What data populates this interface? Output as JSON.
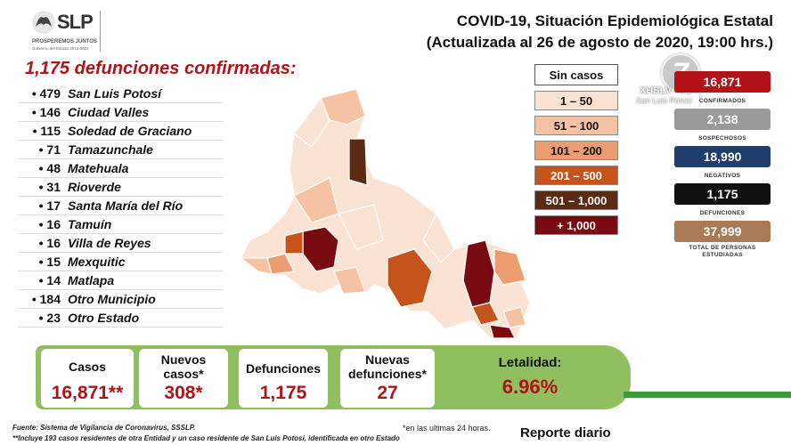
{
  "header": {
    "logo_text": "SLP",
    "logo_tagline": "PROSPEREMOS JUNTOS",
    "logo_subtagline": "Gobierno del Estado 2015-2021",
    "title_line1": "COVID-19, Situación Epidemiológica Estatal",
    "title_line2": "(Actualizada al 26 de agosto de 2020, 19:00 hrs.)"
  },
  "deaths": {
    "title": "1,175 defunciones confirmadas:",
    "rows": [
      {
        "count": "479",
        "name": "San Luis Potosí"
      },
      {
        "count": "146",
        "name": "Ciudad Valles"
      },
      {
        "count": "115",
        "name": "Soledad de Graciano"
      },
      {
        "count": "71",
        "name": "Tamazunchale"
      },
      {
        "count": "48",
        "name": "Matehuala"
      },
      {
        "count": "31",
        "name": "Rioverde"
      },
      {
        "count": "17",
        "name": "Santa María del Río"
      },
      {
        "count": "16",
        "name": "Tamuín"
      },
      {
        "count": "16",
        "name": "Villa de Reyes"
      },
      {
        "count": "15",
        "name": "Mexquitic"
      },
      {
        "count": "14",
        "name": "Matlapa"
      },
      {
        "count": "184",
        "name": "Otro Municipio"
      },
      {
        "count": "23",
        "name": "Otro Estado"
      }
    ]
  },
  "legend": {
    "items": [
      {
        "label": "Sin casos",
        "color": "#ffffff",
        "text_color": "#111111"
      },
      {
        "label": "1 – 50",
        "color": "#fbe3d3",
        "text_color": "#111111"
      },
      {
        "label": "51 – 100",
        "color": "#f5c3a3",
        "text_color": "#111111"
      },
      {
        "label": "101 – 200",
        "color": "#eb9d6f",
        "text_color": "#111111"
      },
      {
        "label": "201 – 500",
        "color": "#c5531c",
        "text_color": "#ffffff"
      },
      {
        "label": "501 – 1,000",
        "color": "#5a2a14",
        "text_color": "#ffffff"
      },
      {
        "label": "+ 1,000",
        "color": "#7a0a12",
        "text_color": "#ffffff"
      }
    ]
  },
  "tv": {
    "logo_number": "7",
    "channel": "XHSLV - TDT",
    "city": "San Luis Potosí"
  },
  "stats": [
    {
      "value": "16,871",
      "label": "CONFIRMADOS",
      "color": "#b31217"
    },
    {
      "value": "2,138",
      "label": "SOSPECHOSOS",
      "color": "#9a9a9a"
    },
    {
      "value": "18,990",
      "label": "NEGATIVOS",
      "color": "#1f3e6b"
    },
    {
      "value": "1,175",
      "label": "DEFUNCIONES",
      "color": "#111111"
    },
    {
      "value": "37,999",
      "label": "TOTAL DE PERSONAS ESTUDIADAS",
      "color": "#a87a55"
    }
  ],
  "summary": {
    "cases_label": "Casos",
    "cases_value": "16,871**",
    "new_cases_label": "Nuevos casos*",
    "new_cases_value": "308*",
    "deaths_label": "Defunciones",
    "deaths_value": "1,175",
    "new_deaths_label": "Nuevas defunciones*",
    "new_deaths_value": "27",
    "lethality_label": "Letalidad:",
    "lethality_value": "6.96%"
  },
  "footer": {
    "source": "Fuente: Sistema de Vigilancia de Coronavirus, SSSLP.",
    "note": "**Incluye 193 casos residentes de otra Entidad y un caso residente de San Luis Potosí, identificada en otro Estado",
    "last24": "*en las ultimas 24 horas.",
    "report": "Reporte diario"
  }
}
